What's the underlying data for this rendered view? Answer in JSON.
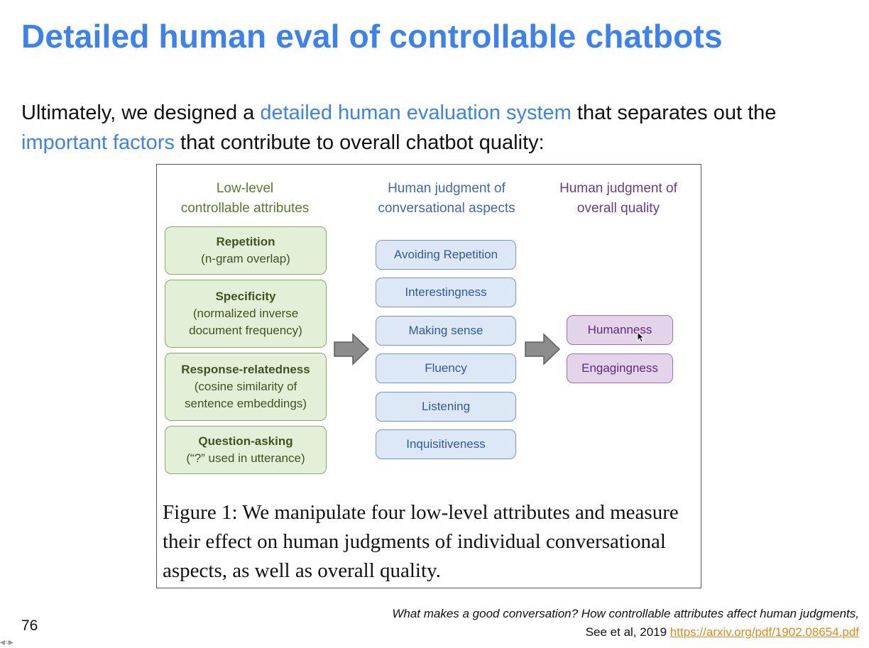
{
  "slide": {
    "title": "Detailed human eval of controllable chatbots",
    "intro": {
      "p1": "Ultimately, we designed a ",
      "h1": "detailed human evaluation system",
      "p2": " that separates out the ",
      "h2": "important factors",
      "p3": " that contribute to overall chatbot quality:"
    },
    "page_number": "76"
  },
  "figure": {
    "col1_head": [
      "Low-level",
      "controllable attributes"
    ],
    "col2_head": [
      "Human judgment of",
      "conversational aspects"
    ],
    "col3_head": [
      "Human judgment of",
      "overall quality"
    ],
    "attributes": [
      {
        "name": "Repetition",
        "desc": [
          "(n-gram overlap)"
        ]
      },
      {
        "name": "Specificity",
        "desc": [
          "(normalized inverse",
          "document frequency)"
        ]
      },
      {
        "name": "Response-relatedness",
        "desc": [
          "(cosine similarity of",
          "sentence embeddings)"
        ]
      },
      {
        "name": "Question-asking",
        "desc": [
          "(“?” used in utterance)"
        ]
      }
    ],
    "aspects": [
      "Avoiding Repetition",
      "Interestingness",
      "Making sense",
      "Fluency",
      "Listening",
      "Inquisitiveness"
    ],
    "quality": [
      "Humanness",
      "Engagingness"
    ],
    "caption": "Figure 1: We manipulate four low-level attributes and measure their effect on human judgments of individual conversational aspects, as well as overall quality.",
    "colors": {
      "green": "#e4efd8",
      "blue": "#dde8f6",
      "purple": "#e3d4ea",
      "arrow": "#8c8c8c"
    }
  },
  "citation": {
    "line1": "What makes a good conversation? How controllable attributes affect human judgments,",
    "line2": "See et al, 2019 ",
    "link": "https://arxiv.org/pdf/1902.08654.pdf"
  }
}
